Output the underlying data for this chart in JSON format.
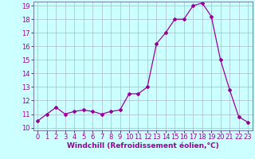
{
  "x": [
    0,
    1,
    2,
    3,
    4,
    5,
    6,
    7,
    8,
    9,
    10,
    11,
    12,
    13,
    14,
    15,
    16,
    17,
    18,
    19,
    20,
    21,
    22,
    23
  ],
  "y": [
    10.5,
    11.0,
    11.5,
    11.0,
    11.2,
    11.3,
    11.2,
    11.0,
    11.2,
    11.3,
    12.5,
    12.5,
    13.0,
    16.2,
    17.0,
    18.0,
    18.0,
    19.0,
    19.2,
    18.2,
    15.0,
    12.8,
    10.8,
    10.4
  ],
  "xlabel": "Windchill (Refroidissement éolien,°C)",
  "ylim_min": 9.8,
  "ylim_max": 19.3,
  "xlim_min": -0.5,
  "xlim_max": 23.5,
  "yticks": [
    10,
    11,
    12,
    13,
    14,
    15,
    16,
    17,
    18,
    19
  ],
  "xticks": [
    0,
    1,
    2,
    3,
    4,
    5,
    6,
    7,
    8,
    9,
    10,
    11,
    12,
    13,
    14,
    15,
    16,
    17,
    18,
    19,
    20,
    21,
    22,
    23
  ],
  "line_color": "#990099",
  "marker": "D",
  "marker_size": 2.0,
  "bg_color": "#ccffff",
  "grid_color": "#aabbcc",
  "xlabel_fontsize": 6.5,
  "tick_fontsize": 6.0,
  "line_width": 0.9
}
